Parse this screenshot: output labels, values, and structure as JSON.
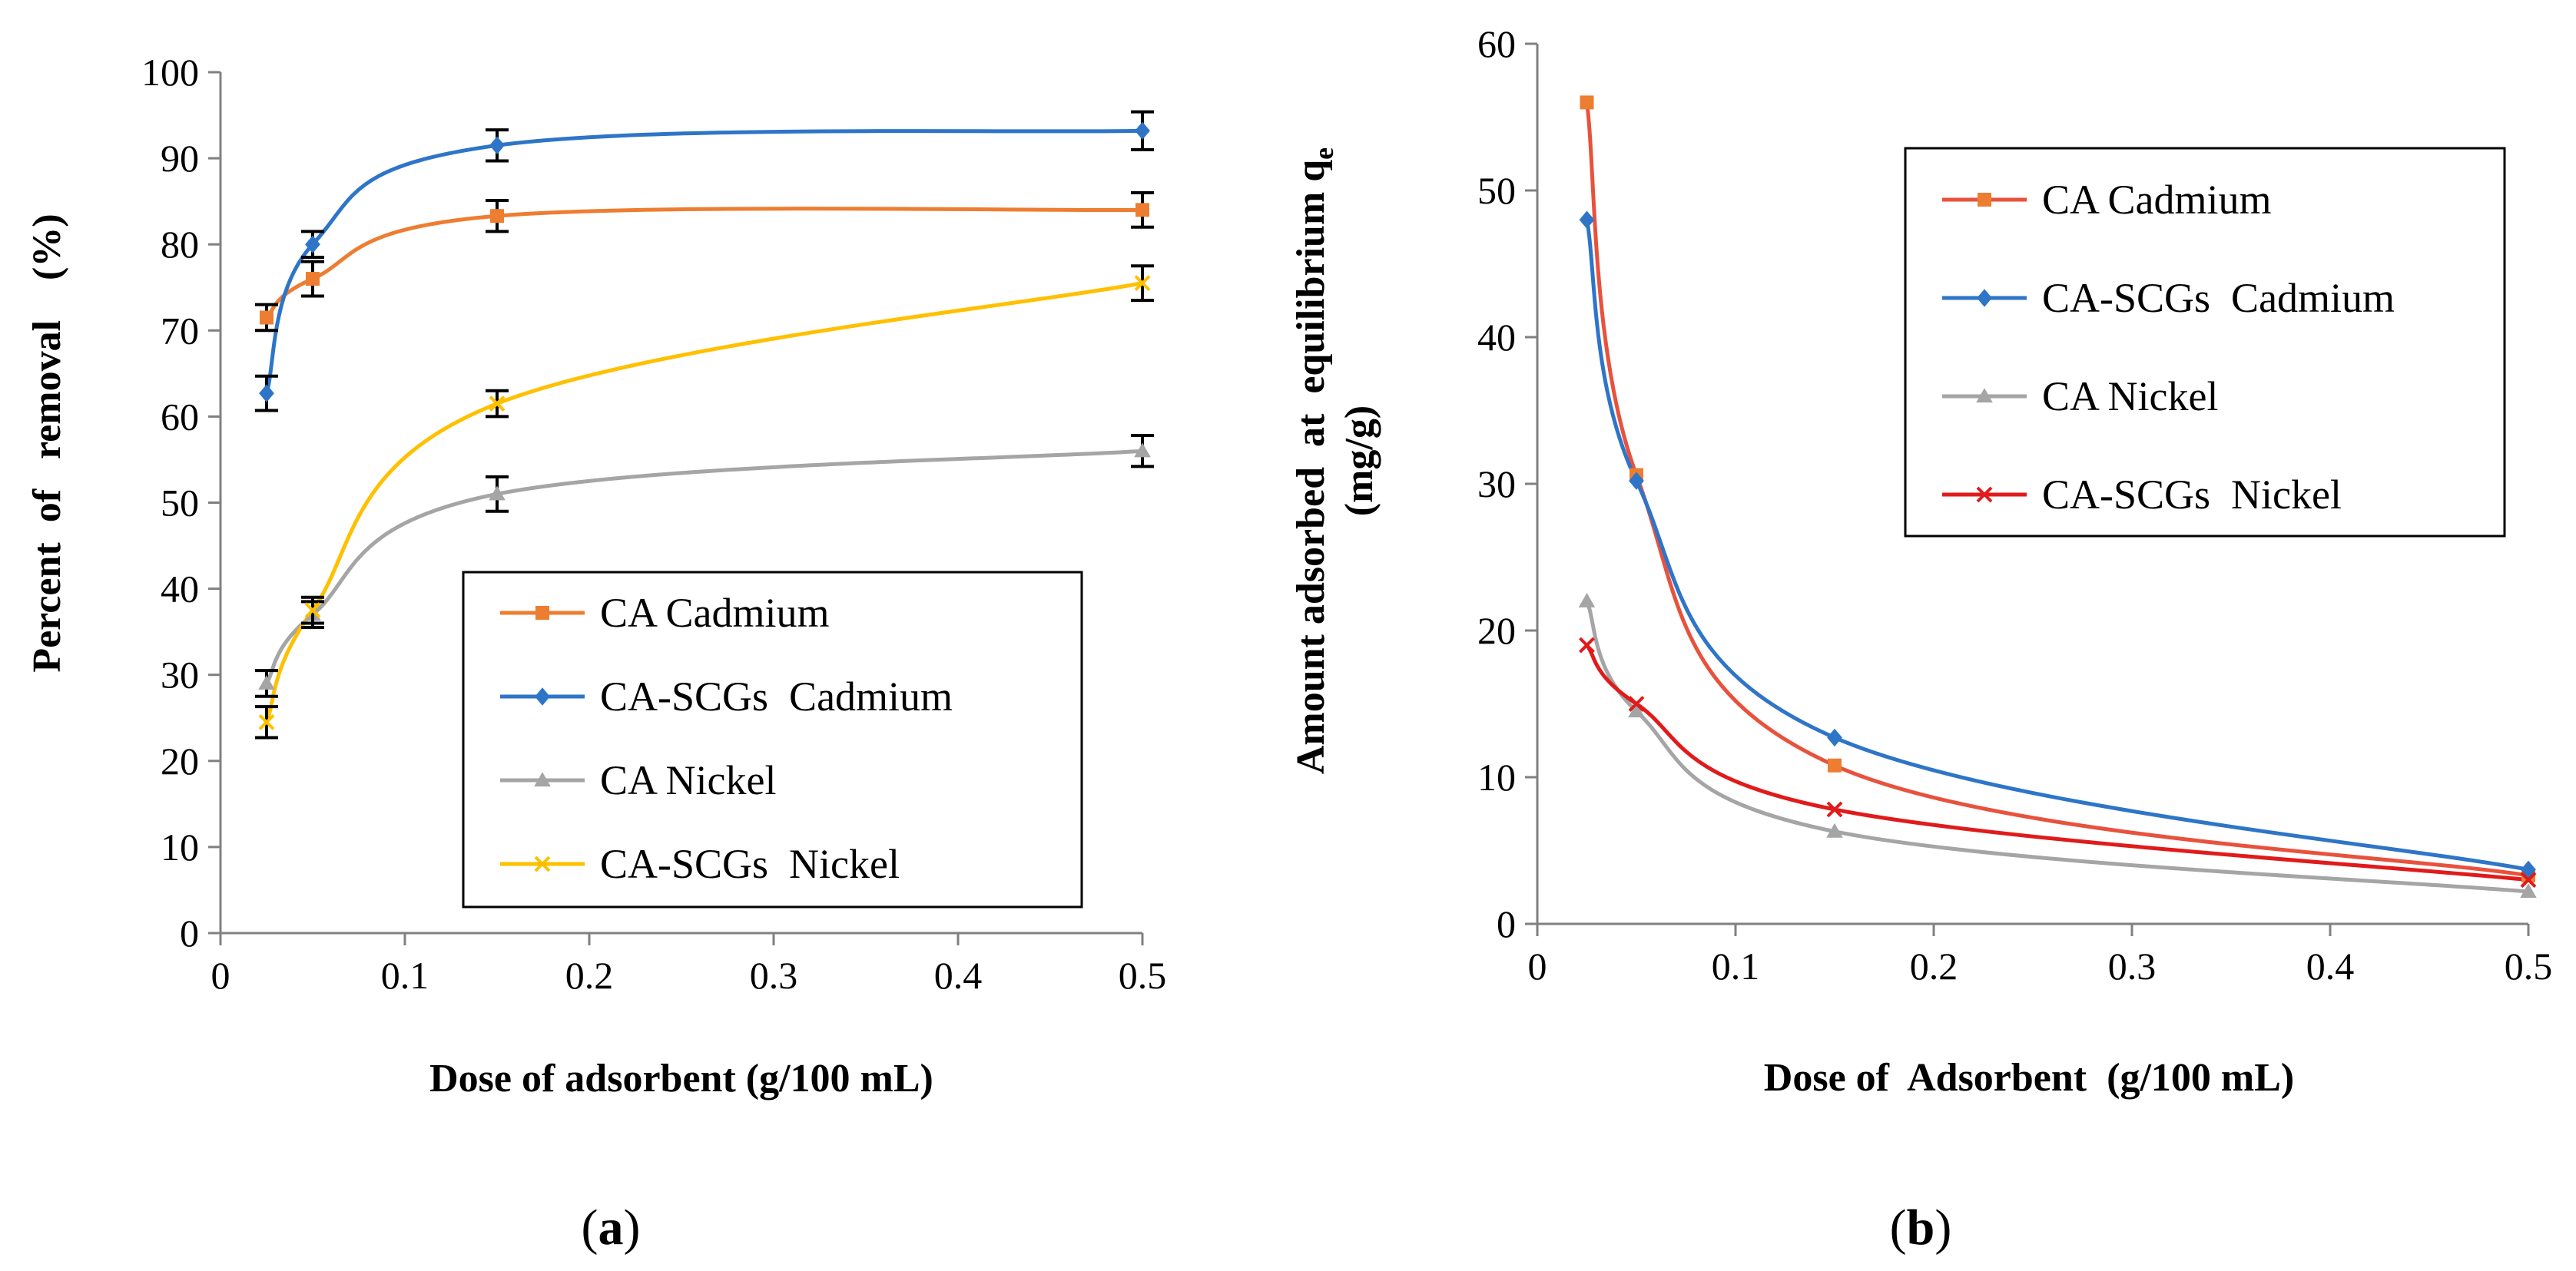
{
  "chart_data": [
    {
      "type": "line",
      "panel_label": "a",
      "title": "",
      "xlabel": "Dose of adsorbent (g/100 mL)",
      "ylabel": "Percent  of   removal    (%)",
      "xlim": [
        0,
        0.5
      ],
      "ylim": [
        0,
        100
      ],
      "xticks": [
        "0",
        "0.1",
        "0.2",
        "0.3",
        "0.4",
        "0.5"
      ],
      "yticks": [
        "0",
        "10",
        "20",
        "30",
        "40",
        "50",
        "60",
        "70",
        "80",
        "90",
        "100"
      ],
      "grid": false,
      "legend_position": "bottom-right",
      "x": [
        0.025,
        0.05,
        0.15,
        0.5
      ],
      "series": [
        {
          "name": "CA Cadmium",
          "color": "#ED7D31",
          "marker": "square",
          "values": [
            71.5,
            76,
            83.3,
            84
          ],
          "errors": [
            1.5,
            2,
            1.8,
            2
          ]
        },
        {
          "name": "CA-SCGs  Cadmium",
          "color": "#2E75C8",
          "marker": "diamond",
          "values": [
            62.7,
            80,
            91.5,
            93.2
          ],
          "errors": [
            2,
            1.5,
            1.8,
            2.2
          ]
        },
        {
          "name": "CA Nickel",
          "color": "#A5A5A5",
          "marker": "triangle",
          "values": [
            29,
            37,
            51,
            56
          ],
          "errors": [
            1.5,
            1.5,
            2,
            1.8
          ]
        },
        {
          "name": "CA-SCGs  Nickel",
          "color": "#FFC000",
          "marker": "x",
          "values": [
            24.5,
            37.5,
            61.5,
            75.5
          ],
          "errors": [
            1.8,
            1.5,
            1.5,
            2
          ]
        }
      ]
    },
    {
      "type": "line",
      "panel_label": "b",
      "title": "",
      "xlabel": "Dose of  Adsorbent  (g/100 mL)",
      "ylabel_line1": "Amount adsorbed  at  equilibrium q",
      "ylabel_subscript": "e",
      "ylabel_line2": "(mg/g)",
      "xlim": [
        0,
        0.5
      ],
      "ylim": [
        0,
        60
      ],
      "xticks": [
        "0",
        "0.1",
        "0.2",
        "0.3",
        "0.4",
        "0.5"
      ],
      "yticks": [
        "0",
        "10",
        "20",
        "30",
        "40",
        "50",
        "60"
      ],
      "grid": false,
      "legend_position": "top-right",
      "x": [
        0.025,
        0.05,
        0.15,
        0.5
      ],
      "series": [
        {
          "name": "CA Cadmium",
          "color": "#E8523D",
          "marker": "square",
          "markerColor": "#ED7D31",
          "values": [
            56,
            30.6,
            10.8,
            3.3
          ]
        },
        {
          "name": "CA-SCGs  Cadmium",
          "color": "#2E75C8",
          "marker": "diamond",
          "values": [
            48,
            30.2,
            12.7,
            3.7
          ]
        },
        {
          "name": "CA Nickel",
          "color": "#A5A5A5",
          "marker": "triangle",
          "values": [
            22,
            14.5,
            6.3,
            2.2
          ]
        },
        {
          "name": "CA-SCGs  Nickel",
          "color": "#E01B1B",
          "marker": "x",
          "values": [
            19,
            15,
            7.8,
            3
          ]
        }
      ]
    }
  ]
}
